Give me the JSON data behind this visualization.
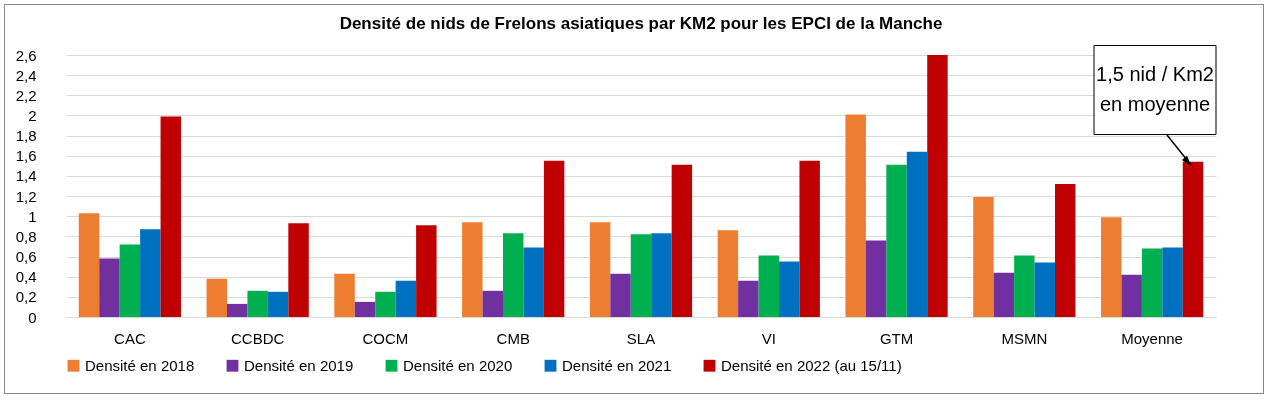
{
  "chart_data": {
    "type": "bar",
    "title": "Densité de nids de Frelons asiatiques par KM2 pour les EPCI de la Manche",
    "categories": [
      "CAC",
      "CCBDC",
      "COCM",
      "CMB",
      "SLA",
      "VI",
      "GTM",
      "MSMN",
      "Moyenne"
    ],
    "series": [
      {
        "name": "Densité en 2018",
        "color": "#ed7d31",
        "values": [
          1.03,
          0.38,
          0.43,
          0.94,
          0.94,
          0.86,
          2.01,
          1.19,
          0.99
        ]
      },
      {
        "name": "Densité en 2019",
        "color": "#7030a0",
        "values": [
          0.58,
          0.13,
          0.15,
          0.26,
          0.43,
          0.36,
          0.76,
          0.44,
          0.42
        ]
      },
      {
        "name": "Densité en 2020",
        "color": "#00b050",
        "values": [
          0.72,
          0.26,
          0.25,
          0.83,
          0.82,
          0.61,
          1.51,
          0.61,
          0.68
        ]
      },
      {
        "name": "Densité en 2021",
        "color": "#0070c0",
        "values": [
          0.87,
          0.25,
          0.36,
          0.69,
          0.83,
          0.55,
          1.64,
          0.54,
          0.69
        ]
      },
      {
        "name": "Densité en 2022 (au 15/11)",
        "color": "#c00000",
        "values": [
          1.99,
          0.93,
          0.91,
          1.55,
          1.51,
          1.55,
          2.6,
          1.32,
          1.54
        ]
      }
    ],
    "ylim": [
      0,
      2.6
    ],
    "yticks": [
      0,
      {
        "value": 0.2,
        "label": "0,2"
      },
      {
        "value": 0.4,
        "label": "0,4"
      },
      {
        "value": 0.6,
        "label": "0,6"
      },
      {
        "value": 0.8,
        "label": "0,8"
      },
      1,
      {
        "value": 1.2,
        "label": "1,2"
      },
      {
        "value": 1.4,
        "label": "1,4"
      },
      {
        "value": 1.6,
        "label": "1,6"
      },
      {
        "value": 1.8,
        "label": "1,8"
      },
      2,
      {
        "value": 2.2,
        "label": "2,2"
      },
      {
        "value": 2.4,
        "label": "2,4"
      },
      {
        "value": 2.6,
        "label": "2,6"
      }
    ],
    "annotations": [
      "1,5 nid / Km2\nen moyenne"
    ],
    "grid": "y",
    "legend": "bottom"
  }
}
